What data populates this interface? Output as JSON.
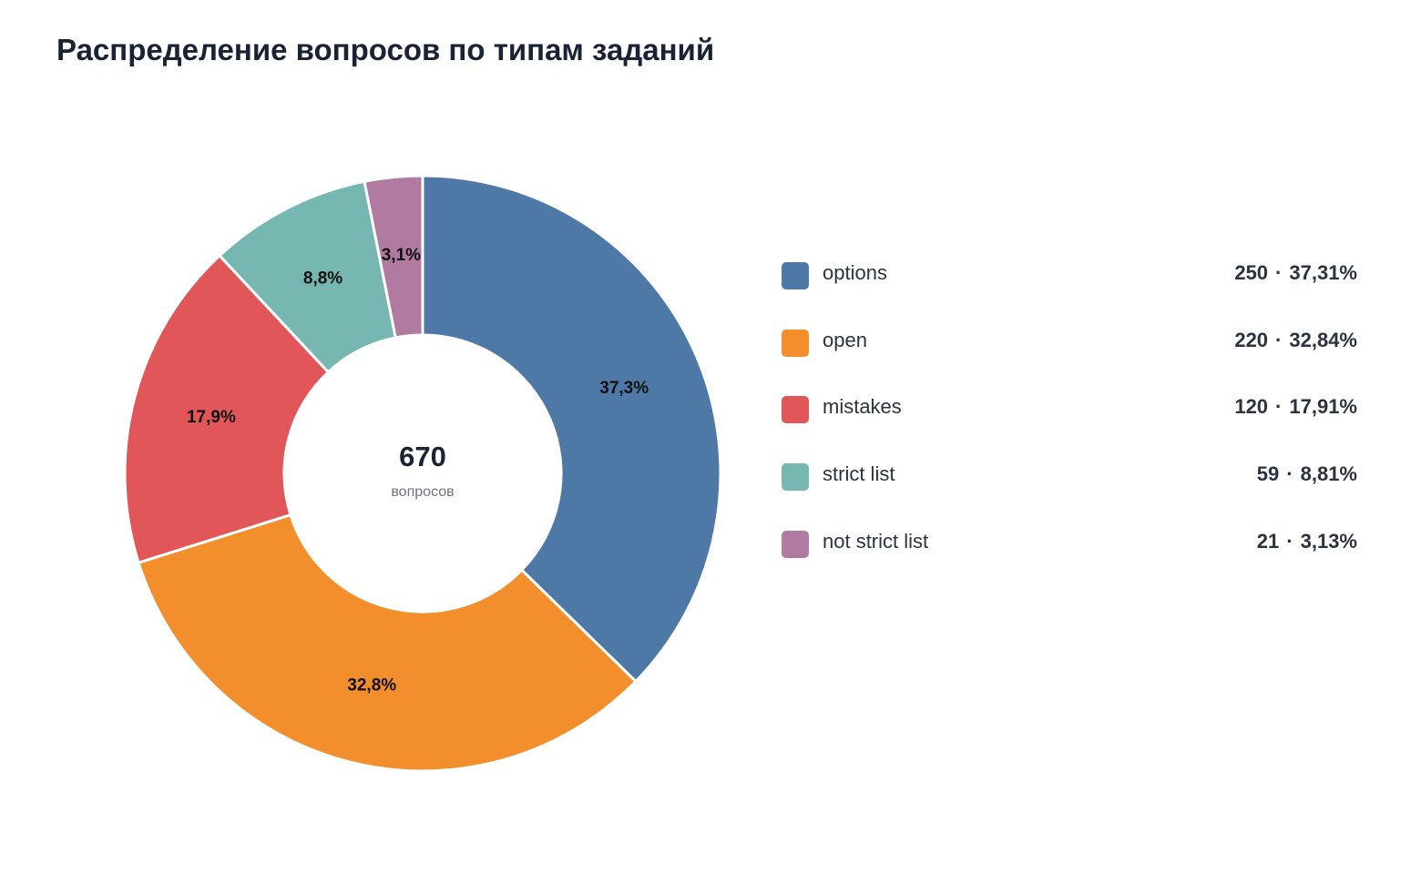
{
  "chart_data": {
    "type": "pie",
    "title": "Распределение вопросов по типам заданий",
    "center": {
      "total": "670",
      "unit": "вопросов"
    },
    "separator": "·",
    "legend_position": "right",
    "series": [
      {
        "name": "options",
        "value": 250,
        "percent_short": "37,3%",
        "percent_full": "37,31%",
        "color": "#4e79a7"
      },
      {
        "name": "open",
        "value": 220,
        "percent_short": "32,8%",
        "percent_full": "32,84%",
        "color": "#f28e2b"
      },
      {
        "name": "mistakes",
        "value": 120,
        "percent_short": "17,9%",
        "percent_full": "17,91%",
        "color": "#e15759"
      },
      {
        "name": "strict list",
        "value": 59,
        "percent_short": "8,8%",
        "percent_full": "8,81%",
        "color": "#76b7b2"
      },
      {
        "name": "not strict list",
        "value": 21,
        "percent_short": "3,1%",
        "percent_full": "3,13%",
        "color": "#b07aa1"
      }
    ]
  }
}
